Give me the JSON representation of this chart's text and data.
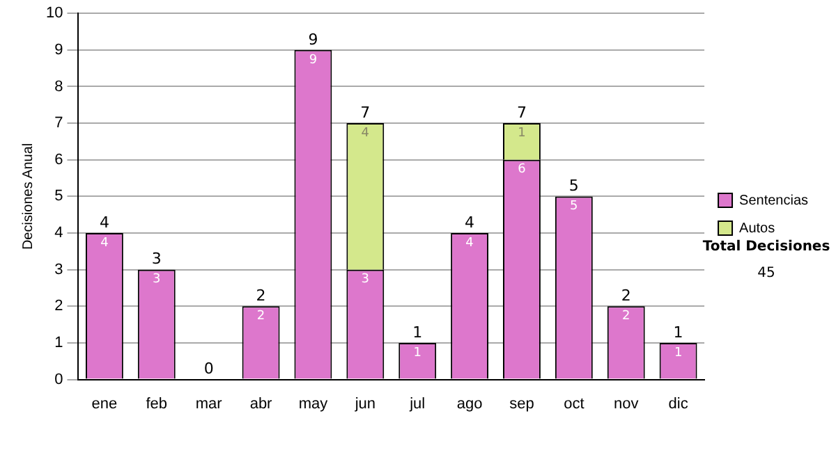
{
  "chart_data": {
    "type": "bar",
    "ylabel": "Decisiones Anual",
    "categories": [
      "ene",
      "feb",
      "mar",
      "abr",
      "may",
      "jun",
      "jul",
      "ago",
      "sep",
      "oct",
      "nov",
      "dic"
    ],
    "stacked": true,
    "series": [
      {
        "name": "Sentencias",
        "color": "#dd77cc",
        "values": [
          4,
          3,
          0,
          2,
          9,
          3,
          1,
          4,
          6,
          5,
          2,
          1
        ],
        "value_labels": [
          "4",
          "3",
          null,
          "2",
          "9",
          "3",
          "1",
          "4",
          "6",
          "5",
          "2",
          "1"
        ]
      },
      {
        "name": "Autos",
        "color": "#d4e88c",
        "values": [
          0,
          0,
          0,
          0,
          0,
          4,
          0,
          0,
          1,
          0,
          0,
          0
        ],
        "value_labels": [
          null,
          null,
          null,
          null,
          null,
          "4",
          null,
          null,
          "1",
          null,
          null,
          null
        ]
      }
    ],
    "totals": [
      "4",
      "3",
      "0",
      "2",
      "9",
      "7",
      "1",
      "4",
      "7",
      "5",
      "2",
      "1"
    ],
    "ylim": [
      0,
      10
    ],
    "yticks": [
      0,
      1,
      2,
      3,
      4,
      5,
      6,
      7,
      8,
      9,
      10
    ],
    "grid": "y",
    "legend": "right",
    "annotations": [
      "Total Decisiones",
      "45"
    ]
  }
}
